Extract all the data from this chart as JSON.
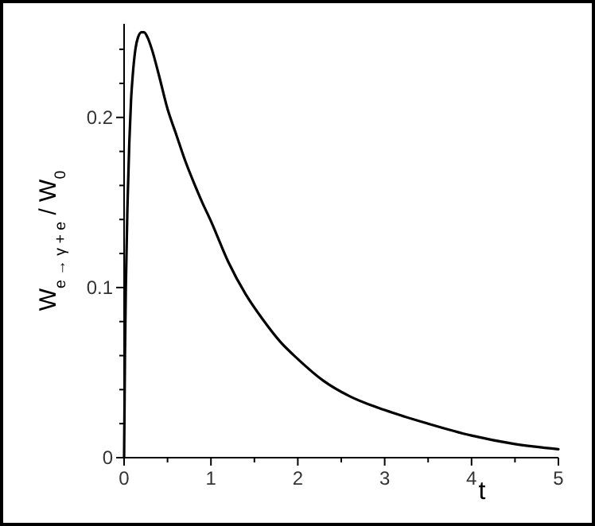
{
  "chart_data": {
    "type": "line",
    "xlabel": "t",
    "ylabel": "W$_{e → γ + e}$ / W$_{0}$",
    "x": [
      0,
      0.01,
      0.02,
      0.04,
      0.06,
      0.08,
      0.1,
      0.13,
      0.16,
      0.2,
      0.23,
      0.27,
      0.32,
      0.4,
      0.5,
      0.6,
      0.7,
      0.8,
      0.9,
      1,
      1.2,
      1.4,
      1.6,
      1.8,
      2,
      2.3,
      2.6,
      3,
      3.5,
      4,
      4.5,
      5
    ],
    "series": [
      {
        "color": "#000000",
        "values": [
          0,
          0.06,
          0.1,
          0.15,
          0.185,
          0.21,
          0.225,
          0.24,
          0.247,
          0.25,
          0.25,
          0.247,
          0.24,
          0.225,
          0.205,
          0.19,
          0.175,
          0.162,
          0.15,
          0.139,
          0.115,
          0.096,
          0.081,
          0.068,
          0.058,
          0.045,
          0.036,
          0.028,
          0.02,
          0.013,
          0.008,
          0.005
        ]
      }
    ],
    "xlim": [
      0,
      5
    ],
    "ylim": [
      0,
      0.255
    ],
    "xticks": [
      0,
      {
        "value": 0.5,
        "label": null
      },
      1,
      {
        "value": 1.5,
        "label": null
      },
      2,
      {
        "value": 2.5,
        "label": null
      },
      3,
      {
        "value": 3.5,
        "label": null
      },
      4,
      {
        "value": 4.5,
        "label": null
      },
      5
    ],
    "yticks": [
      0,
      {
        "value": 0.02,
        "label": null
      },
      {
        "value": 0.04,
        "label": null
      },
      {
        "value": 0.06,
        "label": null
      },
      {
        "value": 0.08,
        "label": null
      },
      0.1,
      {
        "value": 0.12,
        "label": null
      },
      {
        "value": 0.14,
        "label": null
      },
      {
        "value": 0.16,
        "label": null
      },
      {
        "value": 0.18,
        "label": null
      },
      0.2,
      {
        "value": 0.22,
        "label": null
      },
      {
        "value": 0.24,
        "label": null
      }
    ],
    "grid": false,
    "marker": "none",
    "line_style": "solid"
  }
}
